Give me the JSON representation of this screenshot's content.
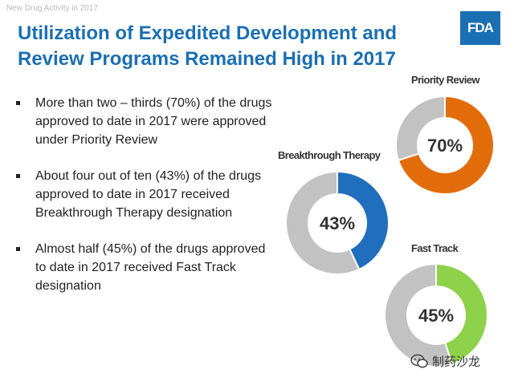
{
  "header": {
    "note": "New Drug Activity in 2017",
    "logo_text": "FDA"
  },
  "title": {
    "line1": "Utilization of Expedited Development and",
    "line2": "Review Programs Remained High in 2017"
  },
  "bullets": [
    "More than two – thirds (70%) of the drugs approved to date in 2017 were approved under Priority Review",
    "About four out of ten (43%) of the drugs approved to date in 2017 received Breakthrough Therapy designation",
    "Almost half (45%) of the drugs approved to date in 2017 received Fast Track designation"
  ],
  "watermark": "制药沙龙",
  "colors": {
    "title": "#1b6fb3",
    "remainder": "#c2c2c2",
    "priority": "#e36c0a",
    "breakthrough": "#1f6fbd",
    "fasttrack": "#8ed14a"
  },
  "chart_data": [
    {
      "type": "pie",
      "style": "donut",
      "title": "Priority Review",
      "value_label": "70%",
      "slices": [
        {
          "value": 70,
          "color": "#e36c0a"
        },
        {
          "value": 30,
          "color": "#c2c2c2"
        }
      ]
    },
    {
      "type": "pie",
      "style": "donut",
      "title": "Breakthrough Therapy",
      "value_label": "43%",
      "slices": [
        {
          "value": 43,
          "color": "#1f6fbd"
        },
        {
          "value": 57,
          "color": "#c2c2c2"
        }
      ]
    },
    {
      "type": "pie",
      "style": "donut",
      "title": "Fast Track",
      "value_label": "45%",
      "slices": [
        {
          "value": 45,
          "color": "#8ed14a"
        },
        {
          "value": 55,
          "color": "#c2c2c2"
        }
      ]
    }
  ]
}
